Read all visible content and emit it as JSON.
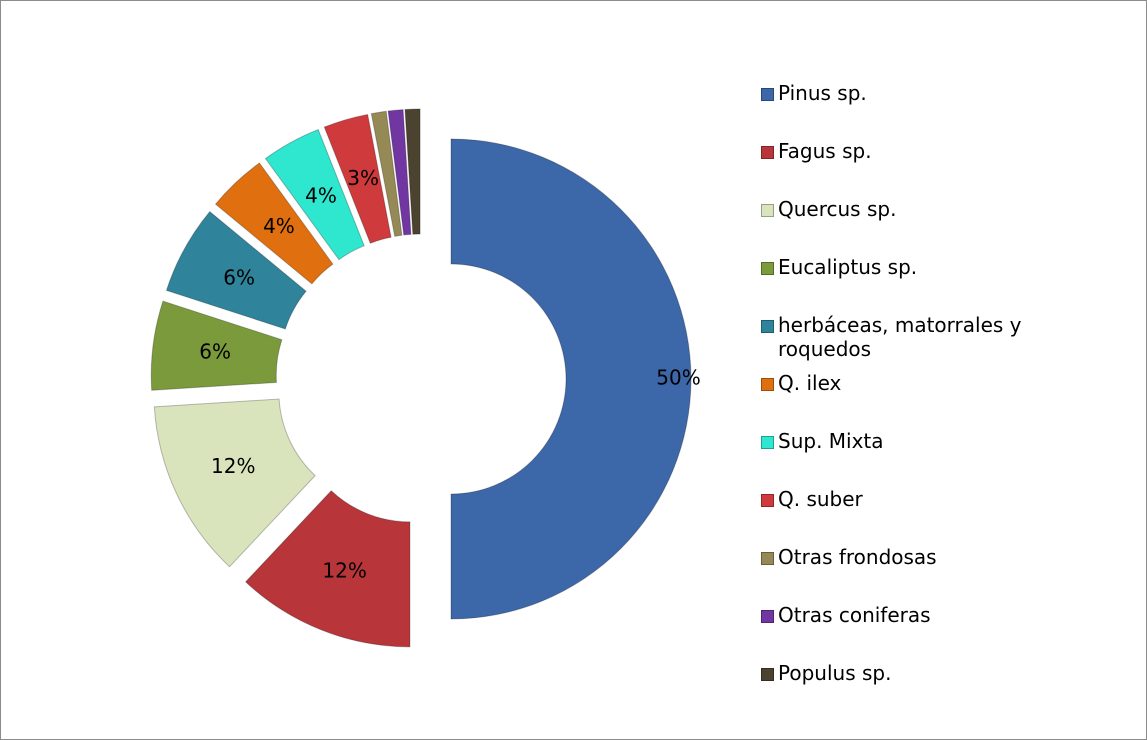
{
  "chart_data": {
    "type": "donut",
    "categories": [
      "Pinus sp.",
      "Fagus sp.",
      "Quercus sp.",
      "Eucaliptus sp.",
      "herbáceas, matorrales y roquedos",
      "Q. ilex",
      "Sup. Mixta",
      "Q. suber",
      "Otras frondosas",
      "Otras coniferas",
      "Populus sp."
    ],
    "values": [
      50,
      12,
      12,
      6,
      6,
      4,
      4,
      3,
      1,
      1,
      1
    ],
    "value_labels": [
      "50%",
      "12%",
      "12%",
      "6%",
      "6%",
      "4%",
      "4%",
      "3%",
      null,
      null,
      null
    ],
    "colors": [
      "#3c67a9",
      "#b8353a",
      "#d9e4bd",
      "#7a9a3c",
      "#2f849b",
      "#e0700f",
      "#2fe6cf",
      "#cf3a3c",
      "#958a55",
      "#7236a3",
      "#4b4330"
    ],
    "legend": "right"
  }
}
